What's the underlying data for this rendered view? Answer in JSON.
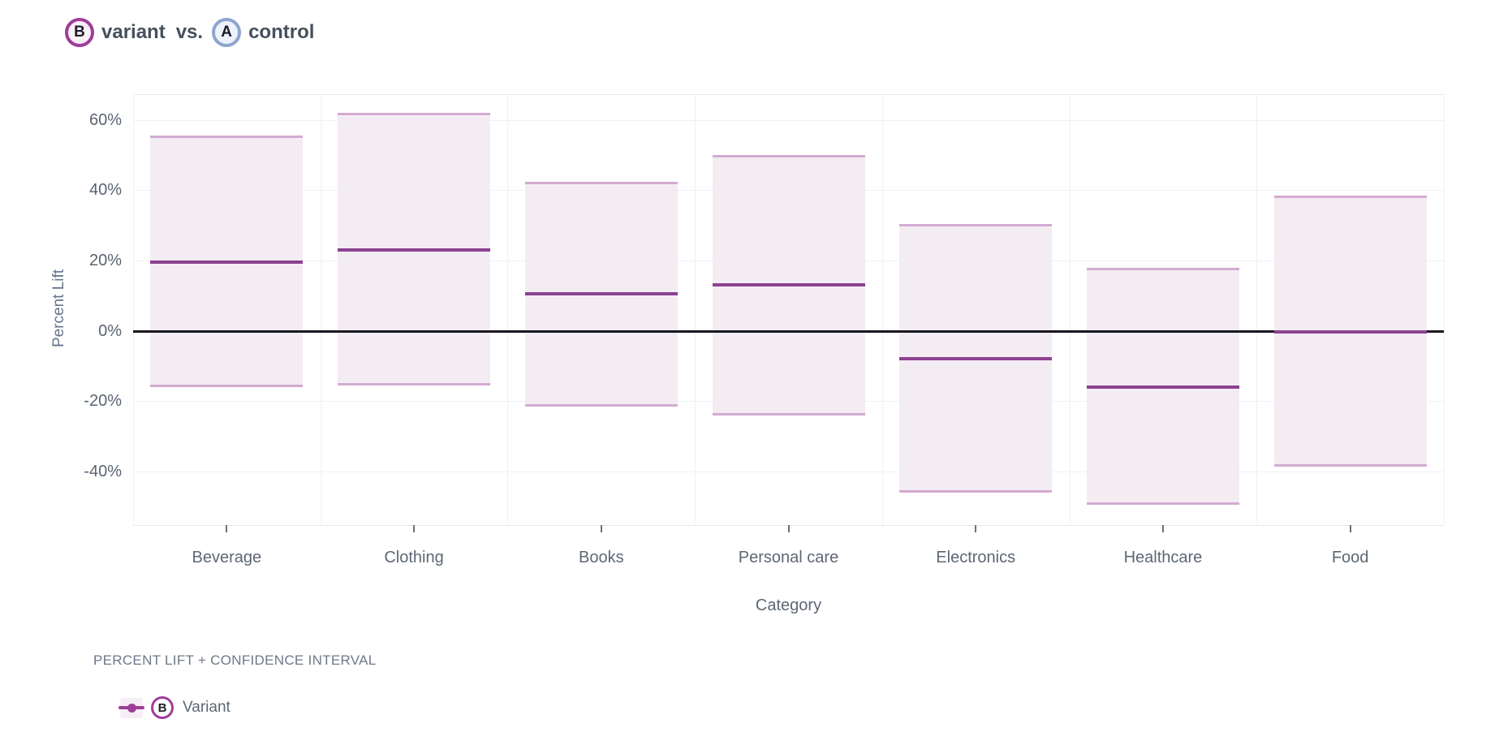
{
  "header": {
    "variant_badge": "B",
    "variant_label": "variant",
    "vs_label": "vs.",
    "control_badge": "A",
    "control_label": "control"
  },
  "chart_data": {
    "type": "bar",
    "subtype": "percent-lift-with-confidence-interval",
    "title": "B variant vs. A control",
    "xlabel": "Category",
    "ylabel": "Percent Lift",
    "categories": [
      "Beverage",
      "Clothing",
      "Books",
      "Personal care",
      "Electronics",
      "Healthcare",
      "Food"
    ],
    "series": [
      {
        "name": "Variant",
        "badge": "B",
        "lift_pct": [
          19.5,
          23,
          10.5,
          13,
          -8,
          -16,
          -0.3
        ],
        "ci_low_pct": [
          -16,
          -15.5,
          -21.5,
          -24,
          -46,
          -49.5,
          -38.5
        ],
        "ci_high_pct": [
          55.5,
          62,
          42.5,
          50,
          30.5,
          18,
          38.5
        ]
      }
    ],
    "y_tick_labels": [
      "60%",
      "40%",
      "20%",
      "0%",
      "-20%",
      "-40%"
    ],
    "y_tick_values": [
      60,
      40,
      20,
      0,
      -20,
      -40
    ],
    "ylim_pct": [
      -55.2,
      67.3
    ],
    "zero_line": true,
    "grid": true,
    "legend": {
      "heading": "PERCENT LIFT + CONFIDENCE INTERVAL",
      "items": [
        {
          "badge": "B",
          "label": "Variant",
          "swatch": "line-with-dot"
        }
      ]
    },
    "colors": {
      "variant_purple": "#9d3e99",
      "lift_line": "#8c4190",
      "band_fill": "#f4ecf3",
      "band_edge": "#d3abd1",
      "control_blue": "#8fa5cf",
      "zero_line": "#17171f",
      "grid": "#edf1f7",
      "axis_text": "#5d6774",
      "heading_text": "#6d7989",
      "header_text": "#45505c"
    }
  }
}
